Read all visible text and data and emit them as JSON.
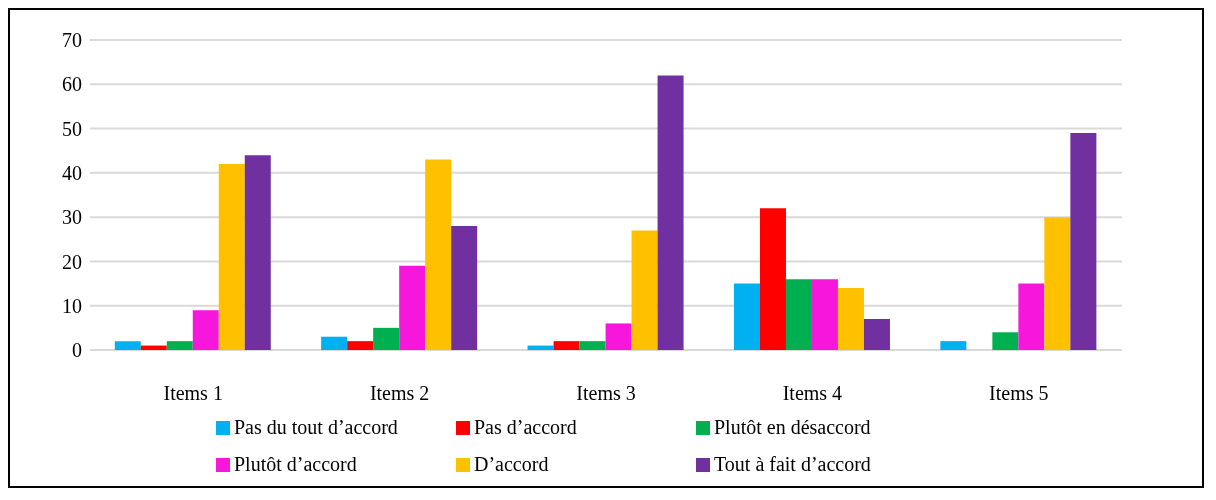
{
  "chart_data": {
    "type": "bar",
    "categories": [
      "Items 1",
      "Items 2",
      "Items 3",
      "Items 4",
      "Items 5"
    ],
    "series": [
      {
        "name": "Pas du tout d’accord",
        "color": "#00b0f0",
        "values": [
          2,
          3,
          1,
          15,
          2
        ]
      },
      {
        "name": "Pas d’accord",
        "color": "#ff0000",
        "values": [
          1,
          2,
          2,
          32,
          0
        ]
      },
      {
        "name": "Plutôt en désaccord",
        "color": "#00b050",
        "values": [
          2,
          5,
          2,
          16,
          4
        ]
      },
      {
        "name": "Plutôt d’accord",
        "color": "#f716dc",
        "values": [
          9,
          19,
          6,
          16,
          15
        ]
      },
      {
        "name": "D’accord",
        "color": "#ffc000",
        "values": [
          42,
          43,
          27,
          14,
          30
        ]
      },
      {
        "name": "Tout à fait d’accord",
        "color": "#7030a0",
        "values": [
          44,
          28,
          62,
          7,
          49
        ]
      }
    ],
    "ylim": [
      0,
      70
    ],
    "yticks": [
      0,
      10,
      20,
      30,
      40,
      50,
      60,
      70
    ],
    "grid": "y",
    "legend": "bottom"
  }
}
